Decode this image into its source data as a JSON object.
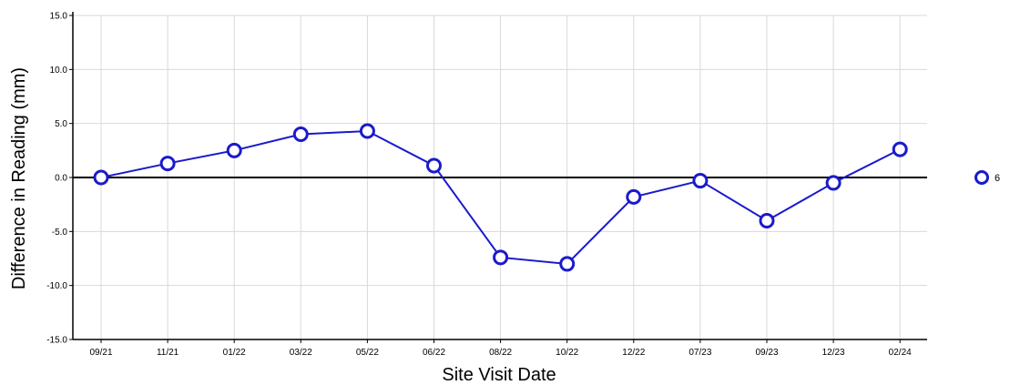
{
  "chart_data": {
    "type": "line",
    "title": "",
    "xlabel": "Site Visit Date",
    "ylabel": "Difference in Reading (mm)",
    "categories": [
      "09/21",
      "11/21",
      "01/22",
      "03/22",
      "05/22",
      "06/22",
      "08/22",
      "10/22",
      "12/22",
      "07/23",
      "09/23",
      "12/23",
      "02/24"
    ],
    "series": [
      {
        "name": "6",
        "values": [
          0.0,
          1.3,
          2.5,
          4.0,
          4.3,
          1.1,
          -7.4,
          -8.0,
          -1.8,
          -0.3,
          -4.0,
          -0.5,
          2.6
        ],
        "color": "#1a1acc"
      }
    ],
    "ylim": [
      -15,
      15
    ],
    "yticks": [
      -15,
      -10,
      -5,
      0,
      5,
      10,
      15
    ],
    "ytick_labels": [
      "-15.0",
      "-10.0",
      "-5.0",
      "0.0",
      "5.0",
      "10.0",
      "15.0"
    ],
    "grid": true,
    "zero_line": true,
    "legend_position": "right"
  }
}
